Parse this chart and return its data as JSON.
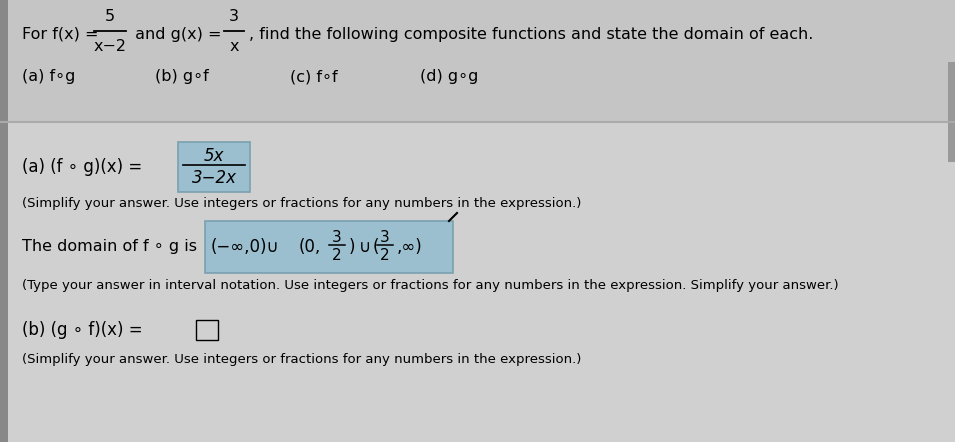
{
  "fig_w": 9.55,
  "fig_h": 4.42,
  "bg_top": "#c9c9c9",
  "bg_bottom": "#d2d2d2",
  "box_color": "#9bbfcf",
  "box_edge": "#7aa0b0",
  "sep_line_color": "#aaaaaa",
  "left_bar_color": "#888888",
  "text_color": "black",
  "small_text_color": "#222222",
  "top_frac1_num": "5",
  "top_frac1_den": "x-2",
  "top_frac2_num": "3",
  "top_frac2_den": "x",
  "part_a_frac_num": "5x",
  "part_a_frac_den": "3-2x",
  "simplify_note": "(Simplify your answer. Use integers or fractions for any numbers in the expression.)",
  "domain_label": "The domain of f ∘ g is",
  "domain_note": "(Type your answer in interval notation. Use integers or fractions for any numbers in the expression. Simplify your answer.)",
  "part_b_label": "(b) (g ∘ f)(x) =",
  "simplify_note2": "(Simplify your answer. Use integers or fractions for any numbers in the expression.)"
}
